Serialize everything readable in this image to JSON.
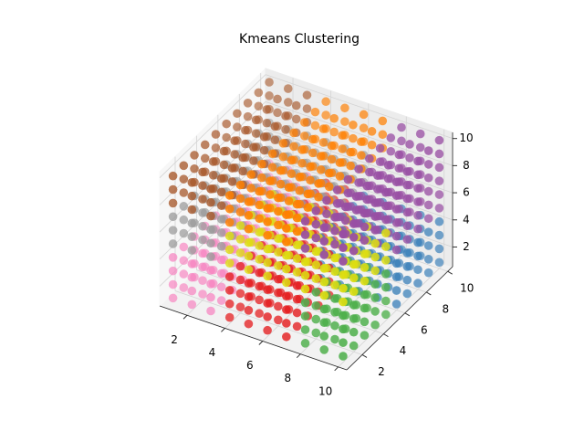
{
  "chart_data": {
    "type": "scatter3d",
    "title": "Kmeans Clustering",
    "x": [
      1,
      2,
      3,
      4,
      5,
      6,
      7,
      8,
      9,
      10
    ],
    "y": [
      1,
      2,
      3,
      4,
      5,
      6,
      7,
      8,
      9,
      10
    ],
    "z": [
      1,
      2,
      3,
      4,
      5,
      6,
      7,
      8,
      9,
      10
    ],
    "xlim": [
      0.55,
      10.45
    ],
    "ylim": [
      0.55,
      10.45
    ],
    "zlim": [
      0.55,
      10.45
    ],
    "xticks": [
      2,
      4,
      6,
      8,
      10
    ],
    "yticks": [
      2,
      4,
      6,
      8,
      10
    ],
    "zticks": [
      2,
      4,
      6,
      8,
      10
    ],
    "grid": true,
    "colors": [
      "#e41a1c",
      "#377eb8",
      "#4daf4a",
      "#984ea3",
      "#ff7f00",
      "#dddd10",
      "#a65628",
      "#f781bf",
      "#999999"
    ],
    "labels": [
      [
        [
          7,
          7,
          7,
          0,
          0,
          0,
          0,
          2,
          2,
          2
        ],
        [
          7,
          7,
          7,
          0,
          0,
          0,
          0,
          2,
          2,
          2
        ],
        [
          7,
          7,
          7,
          0,
          0,
          0,
          0,
          2,
          2,
          2
        ],
        [
          7,
          7,
          7,
          0,
          0,
          0,
          0,
          2,
          2,
          2
        ],
        [
          7,
          7,
          7,
          0,
          0,
          0,
          0,
          2,
          2,
          2
        ],
        [
          7,
          7,
          7,
          0,
          0,
          1,
          1,
          1,
          1,
          1
        ],
        [
          7,
          7,
          7,
          0,
          0,
          1,
          1,
          1,
          1,
          1
        ],
        [
          7,
          7,
          7,
          0,
          0,
          1,
          1,
          1,
          1,
          1
        ],
        [
          7,
          7,
          7,
          0,
          0,
          1,
          1,
          1,
          1,
          1
        ],
        [
          7,
          7,
          7,
          0,
          0,
          1,
          1,
          1,
          1,
          1
        ]
      ],
      [
        [
          7,
          7,
          7,
          0,
          0,
          0,
          0,
          2,
          2,
          2
        ],
        [
          7,
          7,
          7,
          0,
          0,
          0,
          0,
          2,
          2,
          2
        ],
        [
          7,
          7,
          7,
          0,
          0,
          0,
          0,
          2,
          2,
          2
        ],
        [
          7,
          7,
          7,
          0,
          0,
          0,
          0,
          2,
          2,
          2
        ],
        [
          7,
          7,
          7,
          0,
          0,
          0,
          0,
          2,
          2,
          2
        ],
        [
          7,
          7,
          7,
          0,
          0,
          1,
          1,
          1,
          1,
          1
        ],
        [
          7,
          7,
          7,
          0,
          0,
          1,
          1,
          1,
          1,
          1
        ],
        [
          7,
          7,
          7,
          0,
          0,
          1,
          1,
          1,
          1,
          1
        ],
        [
          7,
          7,
          7,
          0,
          0,
          1,
          1,
          1,
          1,
          1
        ],
        [
          7,
          7,
          7,
          0,
          0,
          1,
          1,
          1,
          1,
          1
        ]
      ],
      [
        [
          7,
          7,
          7,
          0,
          0,
          0,
          0,
          2,
          2,
          2
        ],
        [
          7,
          7,
          7,
          0,
          0,
          0,
          0,
          2,
          2,
          2
        ],
        [
          7,
          7,
          7,
          0,
          0,
          0,
          0,
          2,
          2,
          2
        ],
        [
          7,
          7,
          7,
          0,
          0,
          0,
          0,
          2,
          2,
          2
        ],
        [
          7,
          7,
          7,
          0,
          0,
          0,
          0,
          2,
          2,
          2
        ],
        [
          7,
          7,
          7,
          0,
          0,
          1,
          1,
          1,
          1,
          1
        ],
        [
          7,
          7,
          7,
          0,
          0,
          1,
          1,
          1,
          1,
          1
        ],
        [
          7,
          7,
          7,
          0,
          0,
          1,
          1,
          1,
          1,
          1
        ],
        [
          7,
          7,
          7,
          0,
          0,
          1,
          1,
          1,
          1,
          1
        ],
        [
          7,
          7,
          7,
          0,
          0,
          1,
          1,
          1,
          1,
          1
        ]
      ],
      [
        [
          7,
          7,
          7,
          0,
          0,
          0,
          0,
          2,
          2,
          2
        ],
        [
          7,
          7,
          7,
          0,
          0,
          0,
          0,
          2,
          2,
          2
        ],
        [
          7,
          7,
          7,
          0,
          0,
          0,
          0,
          2,
          2,
          2
        ],
        [
          7,
          7,
          7,
          0,
          0,
          0,
          0,
          2,
          2,
          2
        ],
        [
          7,
          7,
          7,
          0,
          0,
          0,
          0,
          2,
          2,
          2
        ],
        [
          7,
          7,
          7,
          0,
          0,
          1,
          1,
          1,
          1,
          1
        ],
        [
          7,
          7,
          7,
          0,
          0,
          1,
          1,
          1,
          1,
          1
        ],
        [
          7,
          7,
          7,
          0,
          0,
          1,
          1,
          1,
          1,
          1
        ],
        [
          7,
          7,
          7,
          0,
          0,
          1,
          1,
          1,
          1,
          1
        ],
        [
          7,
          7,
          7,
          0,
          0,
          1,
          1,
          1,
          1,
          1
        ]
      ],
      [
        [
          8,
          8,
          8,
          5,
          5,
          5,
          5,
          5,
          5,
          5
        ],
        [
          8,
          8,
          8,
          5,
          5,
          5,
          5,
          5,
          5,
          5
        ],
        [
          8,
          8,
          8,
          5,
          5,
          5,
          5,
          5,
          5,
          5
        ],
        [
          8,
          8,
          8,
          5,
          5,
          5,
          5,
          5,
          5,
          5
        ],
        [
          8,
          8,
          8,
          5,
          5,
          5,
          5,
          5,
          5,
          5
        ],
        [
          8,
          8,
          8,
          8,
          8,
          8,
          3,
          3,
          3,
          3
        ],
        [
          8,
          8,
          8,
          8,
          8,
          8,
          3,
          3,
          3,
          3
        ],
        [
          8,
          8,
          8,
          8,
          8,
          8,
          3,
          3,
          3,
          3
        ],
        [
          8,
          8,
          8,
          8,
          8,
          8,
          3,
          3,
          3,
          3
        ],
        [
          8,
          8,
          8,
          8,
          8,
          8,
          3,
          3,
          3,
          3
        ]
      ],
      [
        [
          8,
          8,
          8,
          5,
          5,
          5,
          5,
          5,
          5,
          5
        ],
        [
          8,
          8,
          8,
          5,
          5,
          5,
          5,
          5,
          5,
          5
        ],
        [
          8,
          8,
          8,
          5,
          5,
          5,
          5,
          5,
          5,
          5
        ],
        [
          8,
          8,
          8,
          5,
          5,
          5,
          5,
          5,
          5,
          5
        ],
        [
          8,
          8,
          8,
          5,
          5,
          5,
          5,
          5,
          5,
          5
        ],
        [
          8,
          8,
          8,
          8,
          8,
          8,
          3,
          3,
          3,
          3
        ],
        [
          8,
          8,
          8,
          8,
          8,
          8,
          3,
          3,
          3,
          3
        ],
        [
          8,
          8,
          8,
          8,
          8,
          8,
          3,
          3,
          3,
          3
        ],
        [
          8,
          8,
          8,
          8,
          8,
          8,
          3,
          3,
          3,
          3
        ],
        [
          8,
          8,
          8,
          8,
          8,
          8,
          3,
          3,
          3,
          3
        ]
      ],
      [
        [
          8,
          8,
          8,
          5,
          5,
          5,
          5,
          5,
          5,
          5
        ],
        [
          8,
          8,
          8,
          5,
          5,
          5,
          5,
          5,
          5,
          5
        ],
        [
          8,
          8,
          8,
          5,
          5,
          5,
          5,
          5,
          5,
          5
        ],
        [
          8,
          8,
          8,
          5,
          5,
          5,
          5,
          5,
          5,
          5
        ],
        [
          8,
          8,
          8,
          5,
          5,
          5,
          5,
          5,
          5,
          5
        ],
        [
          8,
          8,
          8,
          8,
          8,
          8,
          3,
          3,
          3,
          3
        ],
        [
          8,
          8,
          8,
          8,
          8,
          8,
          3,
          3,
          3,
          3
        ],
        [
          8,
          8,
          8,
          8,
          8,
          8,
          3,
          3,
          3,
          3
        ],
        [
          8,
          8,
          8,
          8,
          8,
          8,
          3,
          3,
          3,
          3
        ],
        [
          8,
          8,
          8,
          8,
          8,
          8,
          3,
          3,
          3,
          3
        ]
      ],
      [
        [
          6,
          6,
          6,
          4,
          4,
          4,
          4,
          3,
          3,
          3
        ],
        [
          6,
          6,
          6,
          4,
          4,
          4,
          4,
          3,
          3,
          3
        ],
        [
          6,
          6,
          6,
          4,
          4,
          4,
          4,
          3,
          3,
          3
        ],
        [
          6,
          6,
          6,
          4,
          4,
          4,
          4,
          3,
          3,
          3
        ],
        [
          6,
          6,
          6,
          4,
          4,
          4,
          4,
          3,
          3,
          3
        ],
        [
          6,
          6,
          6,
          4,
          4,
          4,
          4,
          3,
          3,
          3
        ],
        [
          6,
          6,
          6,
          4,
          4,
          4,
          4,
          3,
          3,
          3
        ],
        [
          6,
          6,
          6,
          4,
          4,
          4,
          4,
          3,
          3,
          3
        ],
        [
          6,
          6,
          6,
          4,
          4,
          4,
          4,
          3,
          3,
          3
        ],
        [
          6,
          6,
          6,
          4,
          4,
          4,
          4,
          3,
          3,
          3
        ]
      ],
      [
        [
          6,
          6,
          6,
          4,
          4,
          4,
          4,
          3,
          3,
          3
        ],
        [
          6,
          6,
          6,
          4,
          4,
          4,
          4,
          3,
          3,
          3
        ],
        [
          6,
          6,
          6,
          4,
          4,
          4,
          4,
          3,
          3,
          3
        ],
        [
          6,
          6,
          6,
          4,
          4,
          4,
          4,
          3,
          3,
          3
        ],
        [
          6,
          6,
          6,
          4,
          4,
          4,
          4,
          3,
          3,
          3
        ],
        [
          6,
          6,
          6,
          4,
          4,
          4,
          4,
          3,
          3,
          3
        ],
        [
          6,
          6,
          6,
          4,
          4,
          4,
          4,
          3,
          3,
          3
        ],
        [
          6,
          6,
          6,
          4,
          4,
          4,
          4,
          3,
          3,
          3
        ],
        [
          6,
          6,
          6,
          4,
          4,
          4,
          4,
          3,
          3,
          3
        ],
        [
          6,
          6,
          6,
          4,
          4,
          4,
          4,
          3,
          3,
          3
        ]
      ],
      [
        [
          6,
          6,
          6,
          4,
          4,
          4,
          4,
          3,
          3,
          3
        ],
        [
          6,
          6,
          6,
          4,
          4,
          4,
          4,
          3,
          3,
          3
        ],
        [
          6,
          6,
          6,
          4,
          4,
          4,
          4,
          3,
          3,
          3
        ],
        [
          6,
          6,
          6,
          4,
          4,
          4,
          4,
          3,
          3,
          3
        ],
        [
          6,
          6,
          6,
          4,
          4,
          4,
          4,
          3,
          3,
          3
        ],
        [
          6,
          6,
          6,
          4,
          4,
          4,
          4,
          3,
          3,
          3
        ],
        [
          6,
          6,
          6,
          4,
          4,
          4,
          4,
          3,
          3,
          3
        ],
        [
          6,
          6,
          6,
          4,
          4,
          4,
          4,
          3,
          3,
          3
        ],
        [
          6,
          6,
          6,
          4,
          4,
          4,
          4,
          3,
          3,
          3
        ],
        [
          6,
          6,
          6,
          4,
          4,
          4,
          4,
          3,
          3,
          3
        ]
      ]
    ]
  }
}
